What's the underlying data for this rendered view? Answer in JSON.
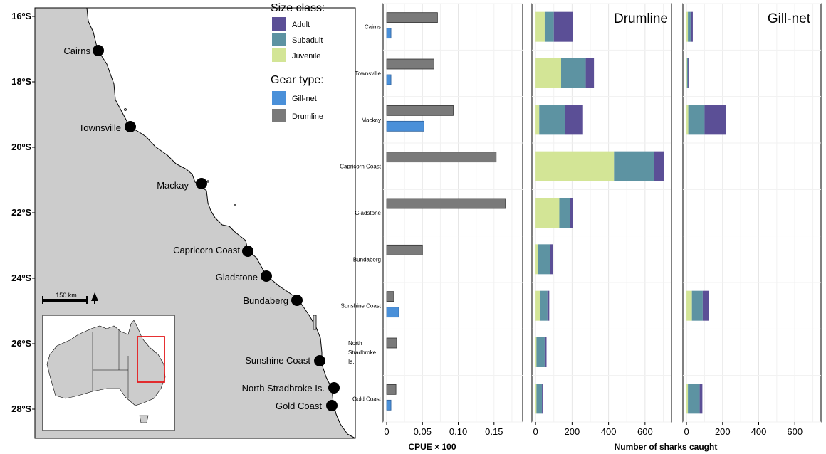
{
  "colors": {
    "adult": "#5b4f96",
    "subadult": "#5d93a2",
    "juvenile": "#d3e596",
    "gillnet": "#4a90d9",
    "drumline": "#7a7a7a",
    "land": "#cccccc",
    "inset_highlight": "#e41a1c"
  },
  "map": {
    "latitude_labels": [
      "16ºS",
      "18ºS",
      "20ºS",
      "22ºS",
      "24ºS",
      "26ºS",
      "28ºS"
    ],
    "sites": [
      "Cairns",
      "Townsville",
      "Mackay",
      "Capricorn Coast",
      "Gladstone",
      "Bundaberg",
      "Sunshine Coast",
      "North Stradbroke Is.",
      "Gold Coast"
    ],
    "scalebar_label": "150 km",
    "north_arrow_icon": "north-arrow-icon"
  },
  "legend": {
    "size_title": "Size class:",
    "size_items": [
      "Adult",
      "Subadult",
      "Juvenile"
    ],
    "gear_title": "Gear type:",
    "gear_items": [
      "Gill-net",
      "Drumline"
    ]
  },
  "panels": {
    "drumline_title": "Drumline",
    "gillnet_title": "Gill-net",
    "cpue_xlabel": "CPUE × 100",
    "sharks_xlabel": "Number of sharks caught"
  },
  "chart_data": [
    {
      "type": "bar",
      "orientation": "horizontal",
      "categories": [
        "Cairns",
        "Townsville",
        "Mackay",
        "Capricorn Coast",
        "Gladstone",
        "Bundaberg",
        "Sunshine Coast",
        "North Stradbroke Is.",
        "Gold Coast"
      ],
      "series": [
        {
          "name": "Drumline",
          "values": [
            0.071,
            0.066,
            0.093,
            0.153,
            0.166,
            0.05,
            0.01,
            0.014,
            0.013
          ]
        },
        {
          "name": "Gill-net",
          "values": [
            0.006,
            0.006,
            0.052,
            null,
            null,
            null,
            0.017,
            null,
            0.006
          ]
        }
      ],
      "xlabel": "CPUE × 100",
      "xlim": [
        -0.005,
        0.19
      ],
      "xticks": [
        "0",
        "0.05",
        "0.10",
        "0.15"
      ],
      "xtick_values": [
        0,
        0.05,
        0.1,
        0.15
      ],
      "grid": true
    },
    {
      "type": "bar",
      "orientation": "horizontal",
      "stacked": true,
      "title": "Drumline",
      "categories": [
        "Cairns",
        "Townsville",
        "Mackay",
        "Capricorn Coast",
        "Gladstone",
        "Bundaberg",
        "Sunshine Coast",
        "North Stradbroke Is.",
        "Gold Coast"
      ],
      "series": [
        {
          "name": "Juvenile",
          "values": [
            50,
            140,
            20,
            430,
            130,
            15,
            25,
            5,
            5
          ]
        },
        {
          "name": "Subadult",
          "values": [
            50,
            135,
            140,
            220,
            60,
            65,
            40,
            45,
            30
          ]
        },
        {
          "name": "Adult",
          "values": [
            105,
            45,
            100,
            55,
            15,
            15,
            10,
            10,
            5
          ]
        }
      ],
      "xlabel": "Number of sharks caught",
      "xlim": [
        -20,
        745
      ],
      "xticks": [
        "0",
        "200",
        "400",
        "600"
      ],
      "xtick_values": [
        0,
        200,
        400,
        600
      ],
      "grid": true
    },
    {
      "type": "bar",
      "orientation": "horizontal",
      "stacked": true,
      "title": "Gill-net",
      "categories": [
        "Cairns",
        "Townsville",
        "Mackay",
        "Capricorn Coast",
        "Gladstone",
        "Bundaberg",
        "Sunshine Coast",
        "North Stradbroke Is.",
        "Gold Coast"
      ],
      "series": [
        {
          "name": "Juvenile",
          "values": [
            8,
            3,
            10,
            0,
            0,
            0,
            30,
            0,
            8
          ]
        },
        {
          "name": "Subadult",
          "values": [
            15,
            5,
            90,
            0,
            0,
            0,
            60,
            0,
            65
          ]
        },
        {
          "name": "Adult",
          "values": [
            12,
            5,
            120,
            0,
            0,
            0,
            35,
            0,
            15
          ]
        }
      ],
      "xlabel": "Number of sharks caught",
      "xlim": [
        -20,
        745
      ],
      "xticks": [
        "0",
        "200",
        "400",
        "600"
      ],
      "xtick_values": [
        0,
        200,
        400,
        600
      ],
      "grid": true
    }
  ]
}
